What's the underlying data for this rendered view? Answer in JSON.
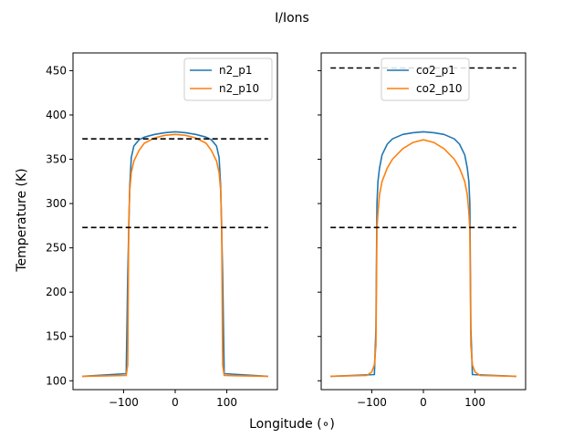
{
  "figure": {
    "suptitle": "I/Ions",
    "xlabel": "Longitude (∘)",
    "ylabel": "Temperature (K)"
  },
  "colors": {
    "series1": "#1f77b4",
    "series2": "#ff7f0e",
    "reference": "#000000"
  },
  "chart_data": [
    {
      "type": "line",
      "xlim": [
        -198,
        198
      ],
      "ylim": [
        90,
        470
      ],
      "xticks": [
        -100,
        0,
        100
      ],
      "yticks": [
        100,
        150,
        200,
        250,
        300,
        350,
        400,
        450
      ],
      "legend_position": "upper right",
      "grid": false,
      "hlines": [
        373,
        273
      ],
      "series": [
        {
          "name": "n2_p1",
          "x": [
            -180,
            -95,
            -92,
            -88,
            -85,
            -80,
            -70,
            -60,
            -40,
            -20,
            0,
            20,
            40,
            60,
            70,
            80,
            85,
            88,
            92,
            95,
            180
          ],
          "y": [
            105,
            108,
            220,
            320,
            352,
            365,
            372,
            375,
            378,
            380,
            381,
            380,
            378,
            375,
            372,
            365,
            352,
            320,
            220,
            108,
            105
          ]
        },
        {
          "name": "n2_p10",
          "x": [
            -180,
            -95,
            -92,
            -90,
            -88,
            -85,
            -80,
            -70,
            -60,
            -40,
            -20,
            0,
            20,
            40,
            60,
            70,
            80,
            85,
            88,
            90,
            92,
            95,
            180
          ],
          "y": [
            105,
            106,
            118,
            280,
            315,
            335,
            348,
            360,
            368,
            374,
            377,
            378,
            377,
            374,
            368,
            360,
            348,
            335,
            315,
            280,
            118,
            106,
            105
          ]
        }
      ]
    },
    {
      "type": "line",
      "xlim": [
        -198,
        198
      ],
      "ylim": [
        90,
        470
      ],
      "xticks": [
        -100,
        0,
        100
      ],
      "yticks": [
        100,
        150,
        200,
        250,
        300,
        350,
        400,
        450
      ],
      "legend_position": "upper center",
      "grid": false,
      "hlines": [
        453,
        273
      ],
      "series": [
        {
          "name": "co2_p1",
          "x": [
            -180,
            -95,
            -92,
            -90,
            -88,
            -85,
            -80,
            -70,
            -60,
            -40,
            -20,
            0,
            20,
            40,
            60,
            70,
            80,
            85,
            88,
            90,
            92,
            95,
            180
          ],
          "y": [
            105,
            107,
            160,
            300,
            325,
            340,
            355,
            367,
            373,
            378,
            380,
            381,
            380,
            378,
            373,
            367,
            355,
            340,
            325,
            300,
            160,
            107,
            105
          ]
        },
        {
          "name": "co2_p10",
          "x": [
            -180,
            -110,
            -100,
            -95,
            -92,
            -90,
            -88,
            -85,
            -80,
            -70,
            -60,
            -40,
            -20,
            0,
            20,
            40,
            60,
            70,
            80,
            85,
            88,
            90,
            92,
            95,
            100,
            110,
            180
          ],
          "y": [
            105,
            106,
            110,
            118,
            140,
            270,
            290,
            310,
            325,
            340,
            350,
            362,
            369,
            372,
            369,
            362,
            350,
            340,
            325,
            310,
            290,
            270,
            140,
            118,
            110,
            106,
            105
          ]
        }
      ]
    }
  ]
}
